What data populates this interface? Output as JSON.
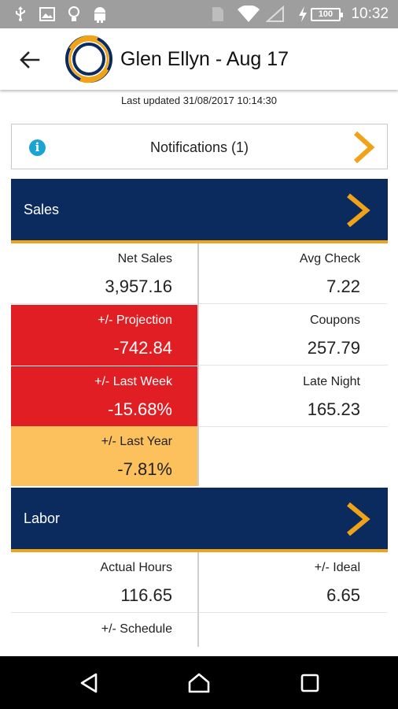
{
  "status_bar": {
    "time": "10:32",
    "battery_level": "100",
    "icons": [
      "usb-icon",
      "image-icon",
      "lightbulb-icon",
      "android-icon",
      "sim-icon",
      "wifi-icon",
      "signal-icon",
      "charging-icon"
    ]
  },
  "app_bar": {
    "title": "Glen Ellyn - Aug 17"
  },
  "last_updated": "Last updated 31/08/2017 10:14:30",
  "notifications": {
    "label": "Notifications (1)",
    "icon": "info-icon"
  },
  "colors": {
    "header_bg": "#0b2a5e",
    "accent": "#f0a318",
    "bad": "#e01e24",
    "warn": "#fcc05c",
    "info": "#1ba3d6"
  },
  "sales": {
    "title": "Sales",
    "cells": [
      {
        "label": "Net Sales",
        "value": "3,957.16",
        "status": "normal"
      },
      {
        "label": "Avg Check",
        "value": "7.22",
        "status": "normal"
      },
      {
        "label": "+/- Projection",
        "value": "-742.84",
        "status": "bad"
      },
      {
        "label": "Coupons",
        "value": "257.79",
        "status": "normal"
      },
      {
        "label": "+/- Last Week",
        "value": "-15.68%",
        "status": "bad"
      },
      {
        "label": "Late Night",
        "value": "165.23",
        "status": "normal"
      },
      {
        "label": "+/- Last Year",
        "value": "-7.81%",
        "status": "warn"
      }
    ]
  },
  "labor": {
    "title": "Labor",
    "cells": [
      {
        "label": "Actual Hours",
        "value": "116.65",
        "status": "normal"
      },
      {
        "label": "+/- Ideal",
        "value": "6.65",
        "status": "normal"
      },
      {
        "label": "+/- Schedule",
        "value": "",
        "status": "normal"
      }
    ]
  }
}
